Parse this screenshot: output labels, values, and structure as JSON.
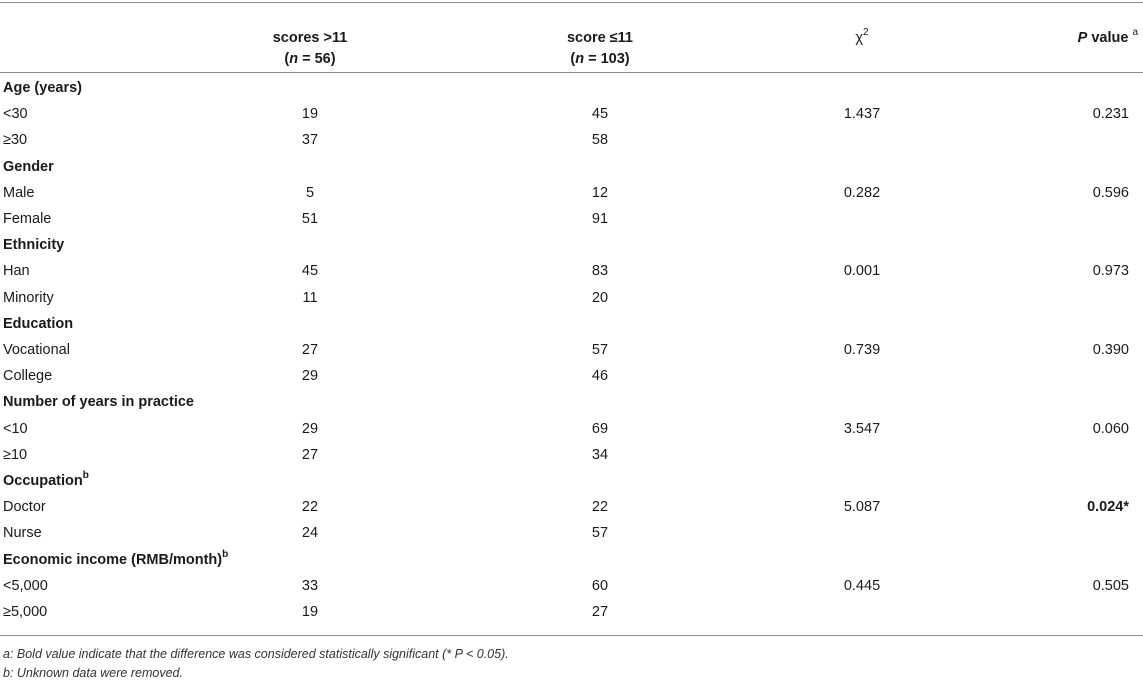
{
  "header": {
    "col1_line1": "scores >11",
    "col1_n_label": "n",
    "col1_n_value": " = 56",
    "col2_line1": "score ≤11",
    "col2_n_label": "n",
    "col2_n_value": " = 103",
    "col3_label": "χ",
    "col3_sup": "2",
    "col4_label_italic": "P",
    "col4_label_rest": " value",
    "col4_sup": "a"
  },
  "rows": [
    {
      "type": "section",
      "label": "Age (years)",
      "sup": ""
    },
    {
      "type": "data",
      "label": "<30",
      "a": "19",
      "b": "45",
      "chi": "1.437",
      "p": "0.231",
      "p_bold": false
    },
    {
      "type": "data",
      "label": "≥30",
      "a": "37",
      "b": "58",
      "chi": "",
      "p": "",
      "p_bold": false
    },
    {
      "type": "section",
      "label": "Gender",
      "sup": ""
    },
    {
      "type": "data",
      "label": "Male",
      "a": "5",
      "b": "12",
      "chi": "0.282",
      "p": "0.596",
      "p_bold": false
    },
    {
      "type": "data",
      "label": "Female",
      "a": "51",
      "b": "91",
      "chi": "",
      "p": "",
      "p_bold": false
    },
    {
      "type": "section",
      "label": "Ethnicity",
      "sup": ""
    },
    {
      "type": "data",
      "label": "Han",
      "a": "45",
      "b": "83",
      "chi": "0.001",
      "p": "0.973",
      "p_bold": false
    },
    {
      "type": "data",
      "label": "Minority",
      "a": "11",
      "b": "20",
      "chi": "",
      "p": "",
      "p_bold": false
    },
    {
      "type": "section",
      "label": "Education",
      "sup": ""
    },
    {
      "type": "data",
      "label": "Vocational",
      "a": "27",
      "b": "57",
      "chi": "0.739",
      "p": "0.390",
      "p_bold": false
    },
    {
      "type": "data",
      "label": "College",
      "a": "29",
      "b": "46",
      "chi": "",
      "p": "",
      "p_bold": false
    },
    {
      "type": "section",
      "label": "Number of years in practice",
      "sup": ""
    },
    {
      "type": "data",
      "label": "<10",
      "a": "29",
      "b": "69",
      "chi": "3.547",
      "p": "0.060",
      "p_bold": false
    },
    {
      "type": "data",
      "label": "≥10",
      "a": "27",
      "b": "34",
      "chi": "",
      "p": "",
      "p_bold": false
    },
    {
      "type": "section",
      "label": "Occupation",
      "sup": "b"
    },
    {
      "type": "data",
      "label": "Doctor",
      "a": "22",
      "b": "22",
      "chi": "5.087",
      "p": "0.024*",
      "p_bold": true
    },
    {
      "type": "data",
      "label": "Nurse",
      "a": "24",
      "b": "57",
      "chi": "",
      "p": "",
      "p_bold": false
    },
    {
      "type": "section",
      "label": "Economic income (RMB/month)",
      "sup": "b"
    },
    {
      "type": "data",
      "label": "<5,000",
      "a": "33",
      "b": "60",
      "chi": "0.445",
      "p": "0.505",
      "p_bold": false
    },
    {
      "type": "data",
      "label": "≥5,000",
      "a": "19",
      "b": "27",
      "chi": "",
      "p": "",
      "p_bold": false
    }
  ],
  "footnotes": [
    "a: Bold value indicate that the difference was considered statistically significant (* P < 0.05).",
    "b: Unknown data were removed."
  ]
}
